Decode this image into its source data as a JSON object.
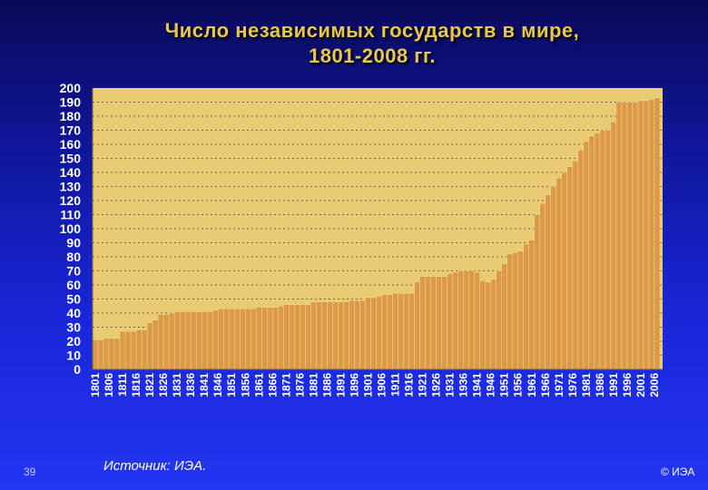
{
  "slide": {
    "title_line1": "Число независимых государств в мире,",
    "title_line2": "1801-2008 гг.",
    "number": "39",
    "source": "Источник:  ИЭА.",
    "copyright": "© ИЭА"
  },
  "colors": {
    "plot_background": "#e9cb74",
    "bar_fill": "#dc9a46",
    "bar_stroke": "#f6e2b0",
    "axis_text": "#ffffff",
    "gridline": "#444444"
  },
  "chart_data": {
    "type": "bar",
    "title": "Число независимых государств в мире, 1801-2008 гг.",
    "xlabel": "",
    "ylabel": "",
    "ylim": [
      0,
      200
    ],
    "yticks": [
      0,
      10,
      20,
      30,
      40,
      50,
      60,
      70,
      80,
      90,
      100,
      110,
      120,
      130,
      140,
      150,
      160,
      170,
      180,
      190,
      200
    ],
    "grid": true,
    "legend": "none",
    "xtick_labels": [
      "1801",
      "1806",
      "1811",
      "1816",
      "1821",
      "1826",
      "1831",
      "1836",
      "1841",
      "1846",
      "1851",
      "1856",
      "1861",
      "1866",
      "1871",
      "1876",
      "1881",
      "1886",
      "1891",
      "1896",
      "1901",
      "1906",
      "1911",
      "1916",
      "1921",
      "1926",
      "1931",
      "1936",
      "1941",
      "1946",
      "1951",
      "1956",
      "1961",
      "1966",
      "1971",
      "1976",
      "1981",
      "1986",
      "1991",
      "1996",
      "2001",
      "2006"
    ],
    "x": [
      1801,
      1803,
      1805,
      1807,
      1809,
      1811,
      1813,
      1815,
      1817,
      1819,
      1821,
      1823,
      1825,
      1827,
      1829,
      1831,
      1833,
      1835,
      1837,
      1839,
      1841,
      1843,
      1845,
      1847,
      1849,
      1851,
      1853,
      1855,
      1857,
      1859,
      1861,
      1863,
      1865,
      1867,
      1869,
      1871,
      1873,
      1875,
      1877,
      1879,
      1881,
      1883,
      1885,
      1887,
      1889,
      1891,
      1893,
      1895,
      1897,
      1899,
      1901,
      1903,
      1905,
      1907,
      1909,
      1911,
      1913,
      1915,
      1917,
      1919,
      1921,
      1923,
      1925,
      1927,
      1929,
      1931,
      1933,
      1935,
      1937,
      1939,
      1941,
      1943,
      1945,
      1947,
      1949,
      1951,
      1953,
      1955,
      1957,
      1959,
      1961,
      1963,
      1965,
      1967,
      1969,
      1971,
      1973,
      1975,
      1977,
      1979,
      1981,
      1983,
      1985,
      1987,
      1989,
      1991,
      1993,
      1995,
      1997,
      1999,
      2001,
      2003,
      2005,
      2007
    ],
    "values": [
      21,
      21,
      22,
      22,
      22,
      27,
      27,
      27,
      28,
      28,
      33,
      35,
      39,
      39,
      40,
      41,
      41,
      41,
      41,
      41,
      41,
      41,
      42,
      43,
      43,
      43,
      43,
      43,
      43,
      43,
      44,
      44,
      44,
      44,
      45,
      46,
      46,
      46,
      46,
      46,
      48,
      48,
      48,
      48,
      48,
      48,
      48,
      49,
      49,
      49,
      51,
      51,
      52,
      53,
      53,
      54,
      54,
      54,
      54,
      62,
      66,
      66,
      66,
      66,
      66,
      68,
      69,
      70,
      70,
      70,
      69,
      63,
      62,
      64,
      70,
      75,
      82,
      83,
      84,
      89,
      92,
      110,
      118,
      124,
      130,
      136,
      140,
      144,
      148,
      156,
      162,
      166,
      168,
      170,
      170,
      176,
      190,
      190,
      190,
      190,
      191,
      191,
      192,
      193
    ]
  }
}
